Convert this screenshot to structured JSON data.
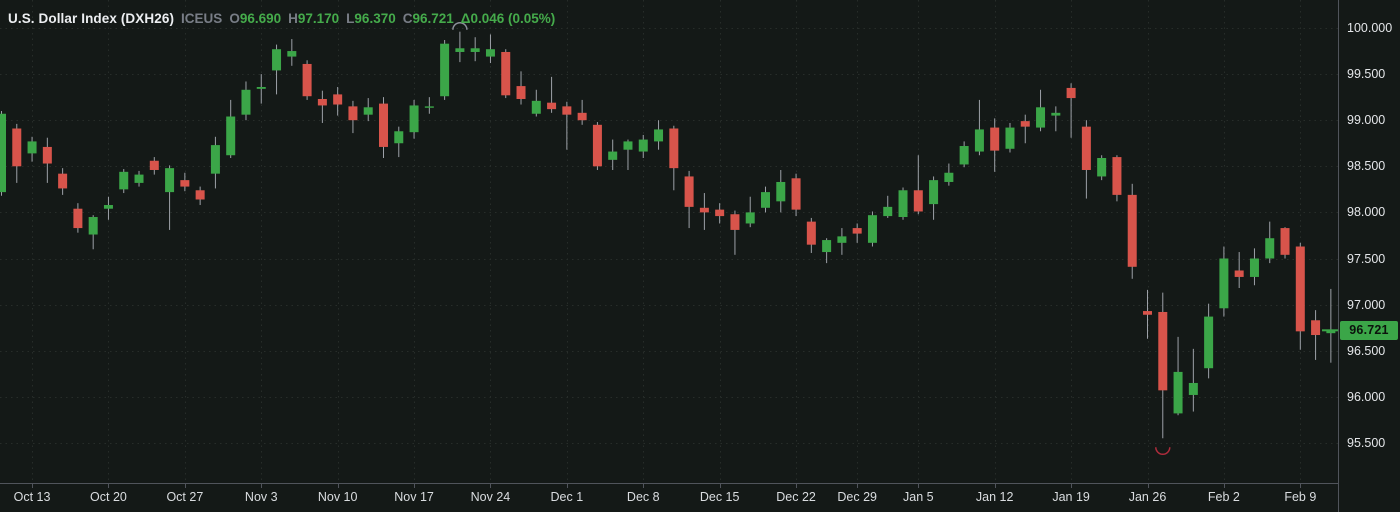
{
  "legend": {
    "title": "U.S. Dollar Index (DXH26)",
    "exchange": "ICEUS",
    "o_label": "O",
    "o_value": "96.690",
    "h_label": "H",
    "h_value": "97.170",
    "l_label": "L",
    "l_value": "96.370",
    "c_label": "C",
    "c_value": "96.721",
    "change": "Δ0.046 (0.05%)"
  },
  "price_axis": {
    "labels": [
      "100.000",
      "99.500",
      "99.000",
      "98.500",
      "98.000",
      "97.500",
      "97.000",
      "96.500",
      "96.000",
      "95.500"
    ],
    "values": [
      100.0,
      99.5,
      99.0,
      98.5,
      98.0,
      97.5,
      97.0,
      96.5,
      96.0,
      95.5
    ],
    "last_price": "96.721"
  },
  "time_axis": {
    "labels": [
      "Oct 13",
      "Oct 20",
      "Oct 27",
      "Nov 3",
      "Nov 10",
      "Nov 17",
      "Nov 24",
      "Dec 1",
      "Dec 8",
      "Dec 15",
      "Dec 22",
      "Dec 29",
      "Jan 5",
      "Jan 12",
      "Jan 19",
      "Jan 26",
      "Feb 2",
      "Feb 9"
    ],
    "tick_candle_indices": [
      2,
      7,
      12,
      17,
      22,
      27,
      32,
      37,
      42,
      47,
      52,
      56,
      60,
      65,
      70,
      75,
      80,
      85
    ]
  },
  "colors": {
    "up": "#3ba648",
    "down": "#d8544b",
    "background": "#141917",
    "grid": "#272d2a",
    "axis_line": "#50545b",
    "axis_text": "#e4e6e9",
    "muted_text": "#787d86",
    "legend_green": "#45ab4b",
    "wick": "#9da1a8",
    "badge_bg": "#3ba648",
    "badge_text": "#0c130d",
    "annotation_gray": "#8b8f99",
    "annotation_red": "#ae2c3c"
  },
  "chart_data": {
    "type": "candlestick",
    "title": "U.S. Dollar Index (DXH26)",
    "symbol": "DXH26",
    "exchange": "ICEUS",
    "ylabel": "Price",
    "y_range": [
      95.2,
      100.25
    ],
    "y_ticks": [
      100.0,
      99.5,
      99.0,
      98.5,
      98.0,
      97.5,
      97.0,
      96.5,
      96.0,
      95.5
    ],
    "grid": true,
    "last_close": 96.721,
    "change": 0.046,
    "change_pct": 0.05,
    "candles": [
      {
        "d": "Oct 9",
        "o": 98.22,
        "h": 99.1,
        "l": 98.18,
        "c": 99.07
      },
      {
        "d": "Oct 10",
        "o": 98.91,
        "h": 98.96,
        "l": 98.32,
        "c": 98.5
      },
      {
        "d": "Oct 13",
        "o": 98.64,
        "h": 98.82,
        "l": 98.55,
        "c": 98.77
      },
      {
        "d": "Oct 14",
        "o": 98.71,
        "h": 98.81,
        "l": 98.32,
        "c": 98.53
      },
      {
        "d": "Oct 15",
        "o": 98.42,
        "h": 98.48,
        "l": 98.19,
        "c": 98.26
      },
      {
        "d": "Oct 16",
        "o": 98.04,
        "h": 98.1,
        "l": 97.78,
        "c": 97.83
      },
      {
        "d": "Oct 17",
        "o": 97.76,
        "h": 97.97,
        "l": 97.6,
        "c": 97.95
      },
      {
        "d": "Oct 20",
        "o": 98.04,
        "h": 98.17,
        "l": 97.92,
        "c": 98.08
      },
      {
        "d": "Oct 21",
        "o": 98.25,
        "h": 98.47,
        "l": 98.21,
        "c": 98.44
      },
      {
        "d": "Oct 22",
        "o": 98.32,
        "h": 98.45,
        "l": 98.28,
        "c": 98.41
      },
      {
        "d": "Oct 23",
        "o": 98.56,
        "h": 98.6,
        "l": 98.41,
        "c": 98.46
      },
      {
        "d": "Oct 24",
        "o": 98.22,
        "h": 98.51,
        "l": 97.81,
        "c": 98.48
      },
      {
        "d": "Oct 27",
        "o": 98.35,
        "h": 98.43,
        "l": 98.23,
        "c": 98.28
      },
      {
        "d": "Oct 28",
        "o": 98.24,
        "h": 98.28,
        "l": 98.08,
        "c": 98.14
      },
      {
        "d": "Oct 29",
        "o": 98.42,
        "h": 98.82,
        "l": 98.26,
        "c": 98.73
      },
      {
        "d": "Oct 30",
        "o": 98.62,
        "h": 99.22,
        "l": 98.59,
        "c": 99.04
      },
      {
        "d": "Oct 31",
        "o": 99.06,
        "h": 99.42,
        "l": 99.0,
        "c": 99.33
      },
      {
        "d": "Nov 3",
        "o": 99.34,
        "h": 99.5,
        "l": 99.18,
        "c": 99.36
      },
      {
        "d": "Nov 4",
        "o": 99.54,
        "h": 99.82,
        "l": 99.28,
        "c": 99.77
      },
      {
        "d": "Nov 5",
        "o": 99.69,
        "h": 99.88,
        "l": 99.59,
        "c": 99.75
      },
      {
        "d": "Nov 6",
        "o": 99.61,
        "h": 99.65,
        "l": 99.22,
        "c": 99.26
      },
      {
        "d": "Nov 7",
        "o": 99.23,
        "h": 99.32,
        "l": 98.97,
        "c": 99.16
      },
      {
        "d": "Nov 10",
        "o": 99.28,
        "h": 99.36,
        "l": 99.05,
        "c": 99.17
      },
      {
        "d": "Nov 11",
        "o": 99.15,
        "h": 99.21,
        "l": 98.86,
        "c": 99.0
      },
      {
        "d": "Nov 12",
        "o": 99.06,
        "h": 99.24,
        "l": 98.99,
        "c": 99.14
      },
      {
        "d": "Nov 13",
        "o": 99.18,
        "h": 99.25,
        "l": 98.59,
        "c": 98.71
      },
      {
        "d": "Nov 14",
        "o": 98.75,
        "h": 98.93,
        "l": 98.6,
        "c": 98.88
      },
      {
        "d": "Nov 17",
        "o": 98.87,
        "h": 99.22,
        "l": 98.8,
        "c": 99.16
      },
      {
        "d": "Nov 18",
        "o": 99.14,
        "h": 99.25,
        "l": 99.07,
        "c": 99.15
      },
      {
        "d": "Nov 19",
        "o": 99.26,
        "h": 99.87,
        "l": 99.22,
        "c": 99.83
      },
      {
        "d": "Nov 20",
        "o": 99.74,
        "h": 99.96,
        "l": 99.63,
        "c": 99.78
      },
      {
        "d": "Nov 21",
        "o": 99.74,
        "h": 99.9,
        "l": 99.64,
        "c": 99.78
      },
      {
        "d": "Nov 24",
        "o": 99.69,
        "h": 99.93,
        "l": 99.62,
        "c": 99.77
      },
      {
        "d": "Nov 25",
        "o": 99.74,
        "h": 99.77,
        "l": 99.24,
        "c": 99.27
      },
      {
        "d": "Nov 26",
        "o": 99.37,
        "h": 99.53,
        "l": 99.17,
        "c": 99.23
      },
      {
        "d": "Nov 27",
        "o": 99.07,
        "h": 99.33,
        "l": 99.04,
        "c": 99.21
      },
      {
        "d": "Nov 28",
        "o": 99.19,
        "h": 99.47,
        "l": 99.08,
        "c": 99.12
      },
      {
        "d": "Dec 1",
        "o": 99.15,
        "h": 99.2,
        "l": 98.68,
        "c": 99.06
      },
      {
        "d": "Dec 2",
        "o": 99.08,
        "h": 99.22,
        "l": 98.95,
        "c": 99.0
      },
      {
        "d": "Dec 3",
        "o": 98.95,
        "h": 98.98,
        "l": 98.46,
        "c": 98.5
      },
      {
        "d": "Dec 4",
        "o": 98.57,
        "h": 98.79,
        "l": 98.46,
        "c": 98.66
      },
      {
        "d": "Dec 5",
        "o": 98.68,
        "h": 98.79,
        "l": 98.46,
        "c": 98.77
      },
      {
        "d": "Dec 8",
        "o": 98.66,
        "h": 98.84,
        "l": 98.59,
        "c": 98.79
      },
      {
        "d": "Dec 9",
        "o": 98.77,
        "h": 99.0,
        "l": 98.68,
        "c": 98.9
      },
      {
        "d": "Dec 10",
        "o": 98.91,
        "h": 98.94,
        "l": 98.24,
        "c": 98.48
      },
      {
        "d": "Dec 11",
        "o": 98.39,
        "h": 98.45,
        "l": 97.83,
        "c": 98.06
      },
      {
        "d": "Dec 12",
        "o": 98.05,
        "h": 98.21,
        "l": 97.81,
        "c": 98.0
      },
      {
        "d": "Dec 15",
        "o": 98.03,
        "h": 98.1,
        "l": 97.88,
        "c": 97.96
      },
      {
        "d": "Dec 16",
        "o": 97.98,
        "h": 98.02,
        "l": 97.54,
        "c": 97.81
      },
      {
        "d": "Dec 17",
        "o": 97.88,
        "h": 98.17,
        "l": 97.84,
        "c": 98.0
      },
      {
        "d": "Dec 18",
        "o": 98.05,
        "h": 98.28,
        "l": 98.0,
        "c": 98.22
      },
      {
        "d": "Dec 19",
        "o": 98.12,
        "h": 98.46,
        "l": 98.0,
        "c": 98.33
      },
      {
        "d": "Dec 22",
        "o": 98.37,
        "h": 98.42,
        "l": 97.96,
        "c": 98.03
      },
      {
        "d": "Dec 23",
        "o": 97.9,
        "h": 97.94,
        "l": 97.56,
        "c": 97.65
      },
      {
        "d": "Dec 24",
        "o": 97.57,
        "h": 97.72,
        "l": 97.45,
        "c": 97.7
      },
      {
        "d": "Dec 26",
        "o": 97.67,
        "h": 97.83,
        "l": 97.54,
        "c": 97.74
      },
      {
        "d": "Dec 29",
        "o": 97.83,
        "h": 97.88,
        "l": 97.67,
        "c": 97.77
      },
      {
        "d": "Dec 30",
        "o": 97.67,
        "h": 98.01,
        "l": 97.63,
        "c": 97.97
      },
      {
        "d": "Dec 31",
        "o": 97.96,
        "h": 98.18,
        "l": 97.94,
        "c": 98.06
      },
      {
        "d": "Jan 2",
        "o": 97.95,
        "h": 98.27,
        "l": 97.92,
        "c": 98.24
      },
      {
        "d": "Jan 5",
        "o": 98.24,
        "h": 98.62,
        "l": 97.98,
        "c": 98.01
      },
      {
        "d": "Jan 6",
        "o": 98.09,
        "h": 98.39,
        "l": 97.92,
        "c": 98.35
      },
      {
        "d": "Jan 7",
        "o": 98.33,
        "h": 98.53,
        "l": 98.29,
        "c": 98.43
      },
      {
        "d": "Jan 8",
        "o": 98.52,
        "h": 98.77,
        "l": 98.49,
        "c": 98.72
      },
      {
        "d": "Jan 9",
        "o": 98.66,
        "h": 99.22,
        "l": 98.62,
        "c": 98.9
      },
      {
        "d": "Jan 12",
        "o": 98.92,
        "h": 99.02,
        "l": 98.44,
        "c": 98.67
      },
      {
        "d": "Jan 13",
        "o": 98.69,
        "h": 98.97,
        "l": 98.65,
        "c": 98.92
      },
      {
        "d": "Jan 14",
        "o": 98.99,
        "h": 99.06,
        "l": 98.75,
        "c": 98.93
      },
      {
        "d": "Jan 15",
        "o": 98.92,
        "h": 99.33,
        "l": 98.88,
        "c": 99.14
      },
      {
        "d": "Jan 16",
        "o": 99.05,
        "h": 99.15,
        "l": 98.88,
        "c": 99.08
      },
      {
        "d": "Jan 19",
        "o": 99.35,
        "h": 99.4,
        "l": 98.81,
        "c": 99.24
      },
      {
        "d": "Jan 20",
        "o": 98.93,
        "h": 99.0,
        "l": 98.15,
        "c": 98.46
      },
      {
        "d": "Jan 21",
        "o": 98.39,
        "h": 98.62,
        "l": 98.35,
        "c": 98.59
      },
      {
        "d": "Jan 22",
        "o": 98.6,
        "h": 98.62,
        "l": 98.12,
        "c": 98.19
      },
      {
        "d": "Jan 23",
        "o": 98.19,
        "h": 98.31,
        "l": 97.28,
        "c": 97.41
      },
      {
        "d": "Jan 26",
        "o": 96.93,
        "h": 97.16,
        "l": 96.63,
        "c": 96.89
      },
      {
        "d": "Jan 27",
        "o": 96.92,
        "h": 97.13,
        "l": 95.55,
        "c": 96.07
      },
      {
        "d": "Jan 28",
        "o": 95.82,
        "h": 96.65,
        "l": 95.8,
        "c": 96.27
      },
      {
        "d": "Jan 29",
        "o": 96.02,
        "h": 96.52,
        "l": 95.84,
        "c": 96.15
      },
      {
        "d": "Jan 30",
        "o": 96.31,
        "h": 97.01,
        "l": 96.2,
        "c": 96.87
      },
      {
        "d": "Feb 2",
        "o": 96.96,
        "h": 97.63,
        "l": 96.87,
        "c": 97.5
      },
      {
        "d": "Feb 3",
        "o": 97.37,
        "h": 97.57,
        "l": 97.18,
        "c": 97.3
      },
      {
        "d": "Feb 4",
        "o": 97.3,
        "h": 97.61,
        "l": 97.21,
        "c": 97.5
      },
      {
        "d": "Feb 5",
        "o": 97.5,
        "h": 97.9,
        "l": 97.45,
        "c": 97.72
      },
      {
        "d": "Feb 6",
        "o": 97.83,
        "h": 97.84,
        "l": 97.5,
        "c": 97.54
      },
      {
        "d": "Feb 9",
        "o": 97.63,
        "h": 97.67,
        "l": 96.51,
        "c": 96.71
      },
      {
        "d": "Feb 10",
        "o": 96.83,
        "h": 96.94,
        "l": 96.4,
        "c": 96.67
      },
      {
        "d": "Feb 11",
        "o": 96.69,
        "h": 97.17,
        "l": 96.37,
        "c": 96.721
      }
    ],
    "annotations": [
      {
        "shape": "arc-over",
        "candle_index": 30,
        "note": "small gray arc above Nov 20 high"
      },
      {
        "shape": "arc-under",
        "candle_index": 76,
        "note": "small red arc below Jan 27 low"
      }
    ],
    "legend_position": "top-left",
    "price_scale_side": "right"
  }
}
